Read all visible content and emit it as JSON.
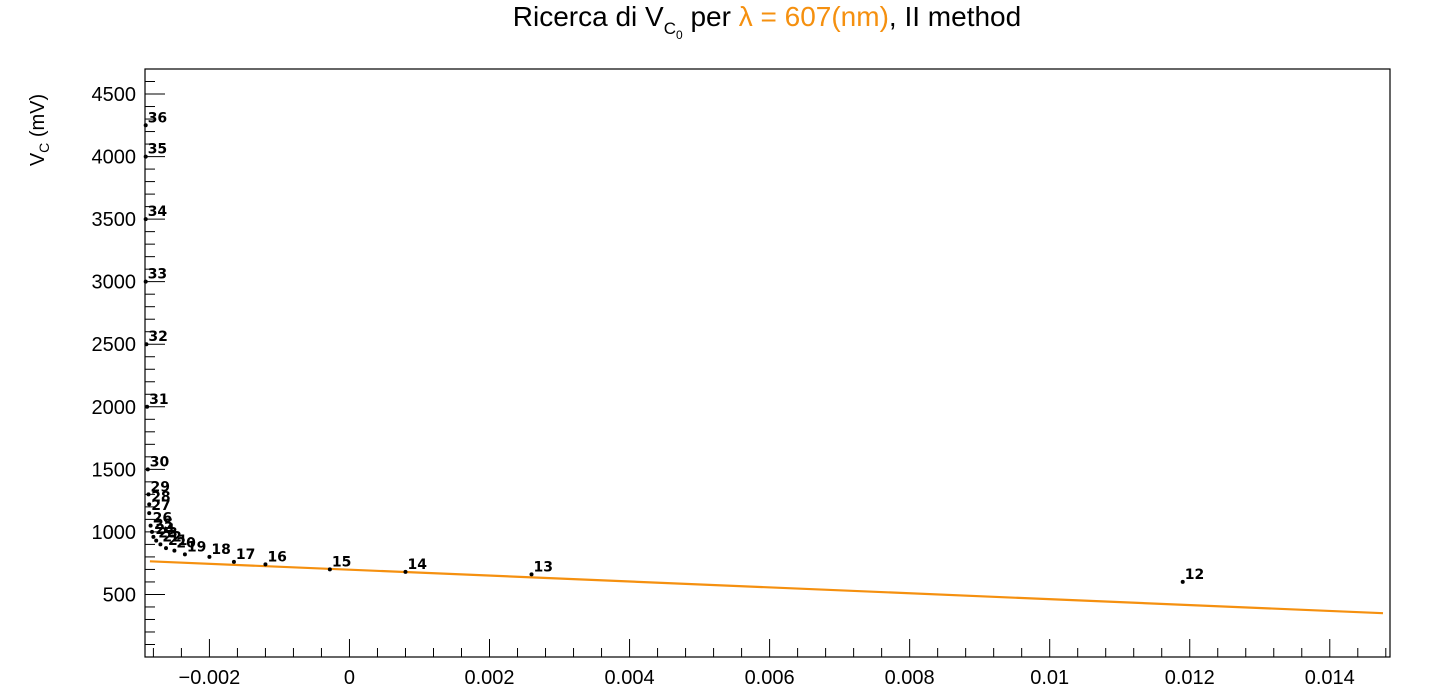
{
  "chart_data": {
    "type": "scatter",
    "title": {
      "prefix": "Ricerca di V",
      "sub": "C",
      "sub2": "0",
      "mid": " per ",
      "highlight": "λ = 607(nm)",
      "suffix": ", II method"
    },
    "ylabel": {
      "main": "V",
      "sub": "C",
      "rest": " (mV)"
    },
    "xlabel": "",
    "xlim": [
      -0.00292,
      0.01486
    ],
    "ylim": [
      0,
      4700
    ],
    "x_ticks": [
      {
        "value": -0.002,
        "label": "−0.002"
      },
      {
        "value": 0,
        "label": "0"
      },
      {
        "value": 0.002,
        "label": "0.002"
      },
      {
        "value": 0.004,
        "label": "0.004"
      },
      {
        "value": 0.006,
        "label": "0.006"
      },
      {
        "value": 0.008,
        "label": "0.008"
      },
      {
        "value": 0.01,
        "label": "0.01"
      },
      {
        "value": 0.012,
        "label": "0.012"
      },
      {
        "value": 0.014,
        "label": "0.014"
      }
    ],
    "y_ticks": [
      {
        "value": 500,
        "label": "500"
      },
      {
        "value": 1000,
        "label": "1000"
      },
      {
        "value": 1500,
        "label": "1500"
      },
      {
        "value": 2000,
        "label": "2000"
      },
      {
        "value": 2500,
        "label": "2500"
      },
      {
        "value": 3000,
        "label": "3000"
      },
      {
        "value": 3500,
        "label": "3500"
      },
      {
        "value": 4000,
        "label": "4000"
      },
      {
        "value": 4500,
        "label": "4500"
      }
    ],
    "points": [
      {
        "label": "12",
        "x": 0.0119,
        "y": 600
      },
      {
        "label": "13",
        "x": 0.0026,
        "y": 660
      },
      {
        "label": "14",
        "x": 0.0008,
        "y": 680
      },
      {
        "label": "15",
        "x": -0.00028,
        "y": 700
      },
      {
        "label": "16",
        "x": -0.0012,
        "y": 740
      },
      {
        "label": "17",
        "x": -0.00165,
        "y": 760
      },
      {
        "label": "18",
        "x": -0.002,
        "y": 800
      },
      {
        "label": "19",
        "x": -0.00235,
        "y": 820
      },
      {
        "label": "20",
        "x": -0.0025,
        "y": 850
      },
      {
        "label": "21",
        "x": -0.00262,
        "y": 870
      },
      {
        "label": "22",
        "x": -0.0027,
        "y": 900
      },
      {
        "label": "23",
        "x": -0.00276,
        "y": 930
      },
      {
        "label": "24",
        "x": -0.0028,
        "y": 960
      },
      {
        "label": "25",
        "x": -0.00282,
        "y": 1000
      },
      {
        "label": "26",
        "x": -0.00284,
        "y": 1050
      },
      {
        "label": "27",
        "x": -0.00286,
        "y": 1150
      },
      {
        "label": "28",
        "x": -0.00286,
        "y": 1220
      },
      {
        "label": "29",
        "x": -0.00287,
        "y": 1300
      },
      {
        "label": "30",
        "x": -0.00288,
        "y": 1500
      },
      {
        "label": "31",
        "x": -0.00289,
        "y": 2000
      },
      {
        "label": "32",
        "x": -0.0029,
        "y": 2500
      },
      {
        "label": "33",
        "x": -0.00291,
        "y": 3000
      },
      {
        "label": "34",
        "x": -0.00291,
        "y": 3500
      },
      {
        "label": "35",
        "x": -0.00291,
        "y": 4000
      },
      {
        "label": "36",
        "x": -0.00291,
        "y": 4250
      }
    ],
    "fit_line": {
      "x": [
        -0.00285,
        0.01476
      ],
      "y": [
        765,
        350
      ],
      "color": "#f5900f"
    },
    "highlight_color": "#f5900f",
    "grid": false,
    "legend": "none"
  }
}
